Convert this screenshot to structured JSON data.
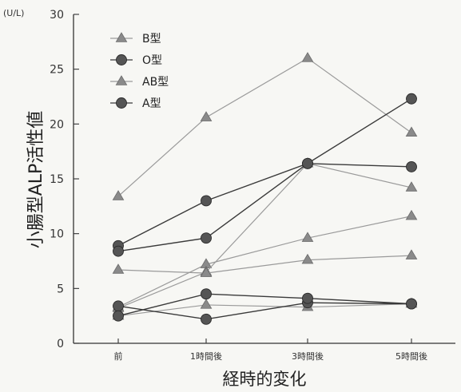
{
  "chart_data": {
    "type": "line",
    "categories": [
      "前",
      "1時間後",
      "3時間後",
      "5時間後"
    ],
    "xlabel": "経時的変化",
    "ylabel": "小腸型ALP活性値",
    "yunit": "(U/L)",
    "ylim": [
      0,
      30
    ],
    "yticks": [
      0,
      5,
      10,
      15,
      20,
      25,
      30
    ],
    "grid": false,
    "legend": {
      "placement": "top-left",
      "entries": [
        {
          "label": "B型",
          "marker": "triangle",
          "color": "#8a8a8a"
        },
        {
          "label": "O型",
          "marker": "circle",
          "color": "#555555"
        },
        {
          "label": "AB型",
          "marker": "triangle",
          "color": "#8a8a8a"
        },
        {
          "label": "A型",
          "marker": "circle",
          "color": "#555555"
        }
      ]
    },
    "series": [
      {
        "marker": "triangle",
        "color": "#8a8a8a",
        "values": [
          13.4,
          20.6,
          26.0,
          19.2
        ]
      },
      {
        "marker": "triangle",
        "color": "#8a8a8a",
        "values": [
          3.3,
          7.2,
          9.6,
          11.6
        ]
      },
      {
        "marker": "triangle",
        "color": "#8a8a8a",
        "values": [
          3.2,
          6.5,
          16.4,
          14.2
        ]
      },
      {
        "marker": "triangle",
        "color": "#8a8a8a",
        "values": [
          6.7,
          6.4,
          7.6,
          8.0
        ]
      },
      {
        "marker": "triangle",
        "color": "#8a8a8a",
        "values": [
          2.5,
          3.5,
          3.3,
          3.6
        ]
      },
      {
        "marker": "circle",
        "color": "#555555",
        "values": [
          8.9,
          13.0,
          16.4,
          22.3
        ]
      },
      {
        "marker": "circle",
        "color": "#555555",
        "values": [
          8.4,
          9.6,
          16.4,
          16.1
        ]
      },
      {
        "marker": "circle",
        "color": "#555555",
        "values": [
          3.4,
          2.2,
          3.7,
          3.6
        ]
      },
      {
        "marker": "circle",
        "color": "#555555",
        "values": [
          2.5,
          4.5,
          4.1,
          3.6
        ]
      }
    ]
  }
}
